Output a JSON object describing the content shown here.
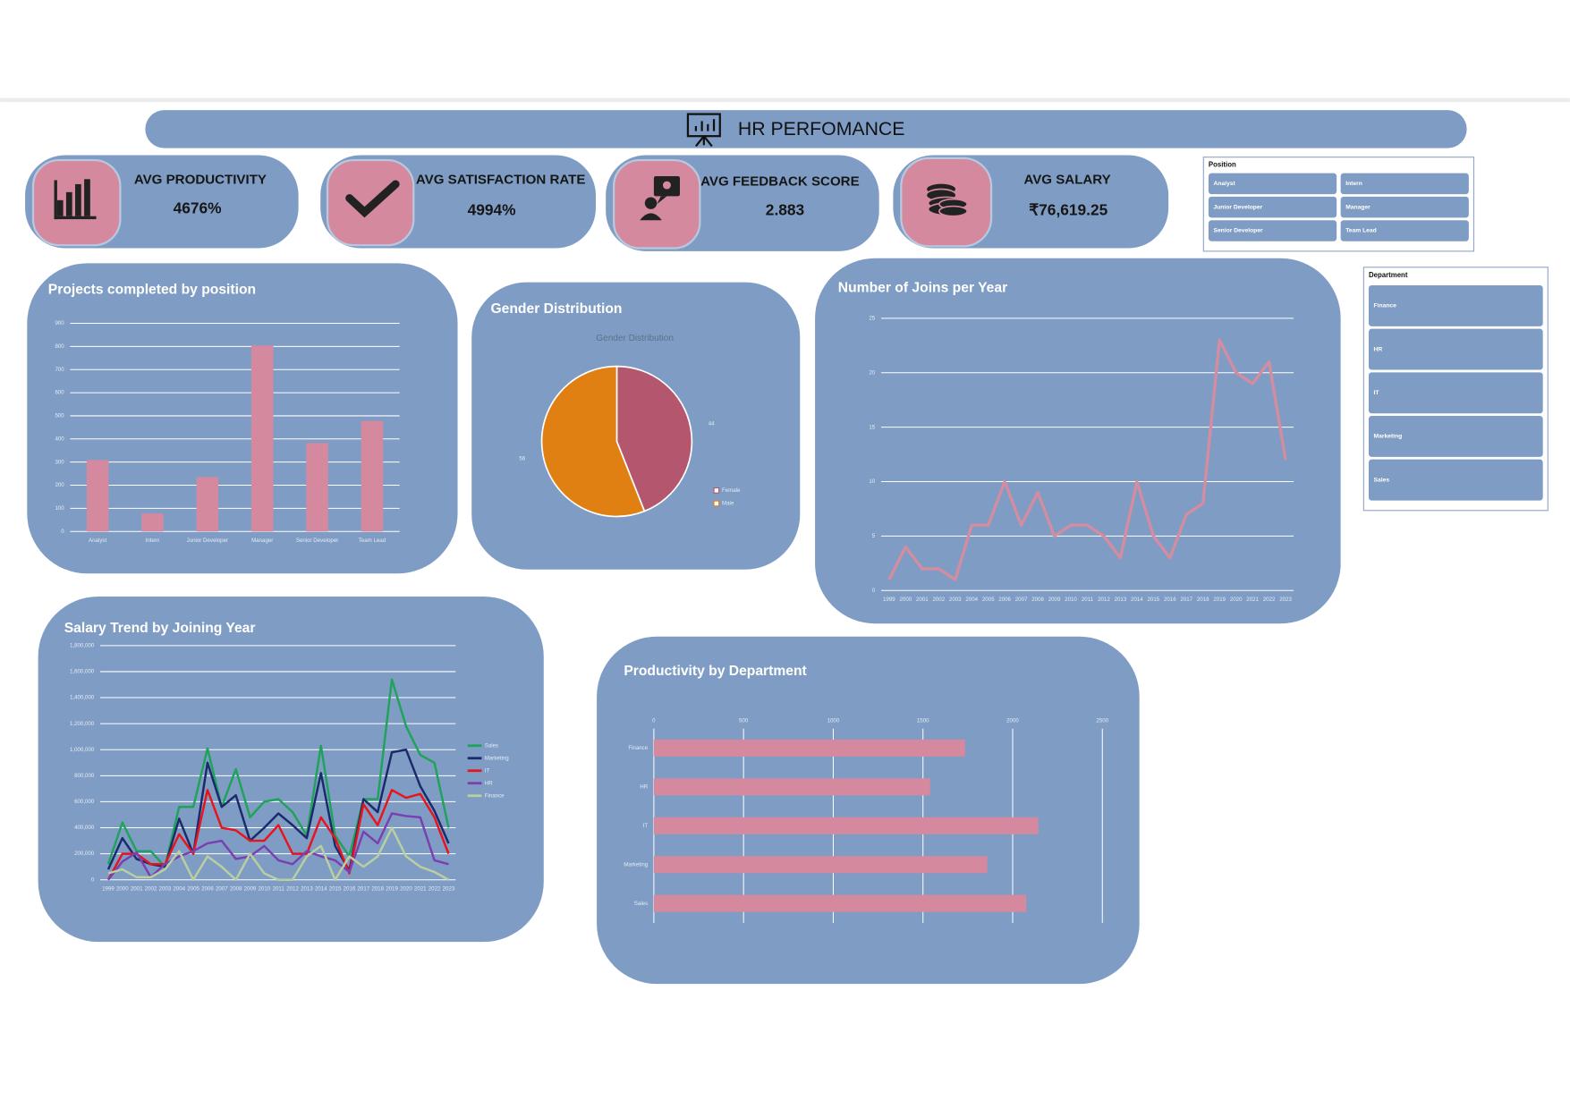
{
  "header": {
    "title": "HR PERFOMANCE"
  },
  "kpis": [
    {
      "label": "AVG PRODUCTIVITY",
      "value": "4676%"
    },
    {
      "label": "AVG SATISFACTION RATE",
      "value": "4994%"
    },
    {
      "label": "AVG FEEDBACK SCORE",
      "value": "2.883"
    },
    {
      "label": "AVG SALARY",
      "value": "₹76,619.25"
    }
  ],
  "slicers": [
    {
      "title": "Position",
      "items": [
        "Analyst",
        "Intern",
        "Junior Developer",
        "Manager",
        "Senior Developer",
        "Team Lead"
      ]
    },
    {
      "title": "Department",
      "items": [
        "Finance",
        "HR",
        "IT",
        "Marketing",
        "Sales"
      ]
    }
  ],
  "chart_data": [
    {
      "type": "bar",
      "title": "Projects completed by position",
      "categories": [
        "Analyst",
        "Intern",
        "Junior Developer",
        "Manager",
        "Senior Developer",
        "Team Lead"
      ],
      "values": [
        309,
        78,
        235,
        804,
        383,
        478
      ],
      "color": "#d4899f",
      "ylim": [
        0,
        900
      ],
      "yticks": [
        0,
        100,
        200,
        300,
        400,
        500,
        600,
        700,
        800,
        900
      ],
      "grid": true
    },
    {
      "type": "pie",
      "title": "Gender Distribution",
      "subtitle": "Gender Distribution",
      "categories": [
        "Female",
        "Male"
      ],
      "values": [
        44,
        56
      ],
      "colors": [
        "#b5566f",
        "#e07f12"
      ],
      "legend": "right"
    },
    {
      "type": "line",
      "title": "Number of Joins per Year",
      "x": [
        1999,
        2000,
        2001,
        2002,
        2003,
        2004,
        2005,
        2006,
        2007,
        2008,
        2009,
        2010,
        2011,
        2012,
        2013,
        2014,
        2015,
        2016,
        2017,
        2018,
        2019,
        2020,
        2021,
        2022,
        2023
      ],
      "xlim": [
        1999,
        2023
      ],
      "values": [
        1,
        4,
        2,
        2,
        1,
        6,
        6,
        10,
        6,
        9,
        5,
        6,
        6,
        5,
        3,
        10,
        5,
        3,
        7,
        8,
        23,
        20,
        19,
        21,
        12
      ],
      "color": "#d48ca0",
      "ylim": [
        0,
        25
      ],
      "yticks": [
        0,
        5,
        10,
        15,
        20,
        25
      ],
      "grid": true
    },
    {
      "type": "line",
      "title": "Salary Trend by Joining Year",
      "x": [
        1999,
        2000,
        2001,
        2002,
        2003,
        2004,
        2005,
        2006,
        2007,
        2008,
        2009,
        2010,
        2011,
        2012,
        2013,
        2014,
        2015,
        2016,
        2017,
        2018,
        2019,
        2020,
        2021,
        2022,
        2023
      ],
      "xlim": [
        1999,
        2023
      ],
      "series": [
        {
          "name": "Sales",
          "color": "#1fa35a",
          "values": [
            120000,
            440000,
            220000,
            220000,
            100000,
            560000,
            560000,
            1010000,
            560000,
            850000,
            480000,
            600000,
            620000,
            520000,
            340000,
            1030000,
            340000,
            180000,
            620000,
            620000,
            1540000,
            1180000,
            960000,
            900000,
            400000
          ]
        },
        {
          "name": "Marketing",
          "color": "#1b2a6b",
          "values": [
            80000,
            320000,
            160000,
            120000,
            100000,
            470000,
            200000,
            900000,
            560000,
            650000,
            300000,
            400000,
            510000,
            420000,
            320000,
            820000,
            260000,
            70000,
            620000,
            520000,
            980000,
            1000000,
            720000,
            530000,
            280000
          ]
        },
        {
          "name": "IT",
          "color": "#e8141c",
          "values": [
            0,
            200000,
            200000,
            120000,
            120000,
            350000,
            200000,
            690000,
            400000,
            380000,
            300000,
            300000,
            420000,
            200000,
            200000,
            480000,
            320000,
            50000,
            580000,
            420000,
            690000,
            630000,
            660000,
            480000,
            200000
          ]
        },
        {
          "name": "HR",
          "color": "#7a3fb0",
          "values": [
            0,
            140000,
            210000,
            20000,
            120000,
            180000,
            220000,
            280000,
            300000,
            160000,
            180000,
            260000,
            150000,
            120000,
            220000,
            180000,
            150000,
            60000,
            370000,
            280000,
            510000,
            490000,
            480000,
            150000,
            120000
          ]
        },
        {
          "name": "Finance",
          "color": "#b9cfa0",
          "values": [
            50000,
            80000,
            20000,
            20000,
            80000,
            220000,
            0,
            180000,
            100000,
            0,
            200000,
            50000,
            0,
            0,
            180000,
            260000,
            0,
            180000,
            100000,
            180000,
            400000,
            180000,
            100000,
            60000,
            0
          ]
        }
      ],
      "ylim": [
        0,
        1800000
      ],
      "yticks": [
        0,
        {
          "value": 200000,
          "label": "200,000"
        },
        {
          "value": 400000,
          "label": "400,000"
        },
        {
          "value": 600000,
          "label": "600,000"
        },
        {
          "value": 800000,
          "label": "800,000"
        },
        {
          "value": 1000000,
          "label": "1,000,000"
        },
        {
          "value": 1200000,
          "label": "1,200,000"
        },
        {
          "value": 1400000,
          "label": "1,400,000"
        },
        {
          "value": 1600000,
          "label": "1,600,000"
        },
        {
          "value": 1800000,
          "label": "1,800,000"
        }
      ],
      "grid": true,
      "legend": "right"
    },
    {
      "type": "bar",
      "orientation": "horizontal",
      "title": "Productivity by Department",
      "categories": [
        "Finance",
        "HR",
        "IT",
        "Marketing",
        "Sales"
      ],
      "values": [
        1735,
        1540,
        2143,
        1858,
        2076
      ],
      "color": "#d4899f",
      "xlim": [
        0,
        2500
      ],
      "xticks": [
        0,
        500,
        1000,
        1500,
        2000,
        2500
      ],
      "grid": true
    }
  ]
}
